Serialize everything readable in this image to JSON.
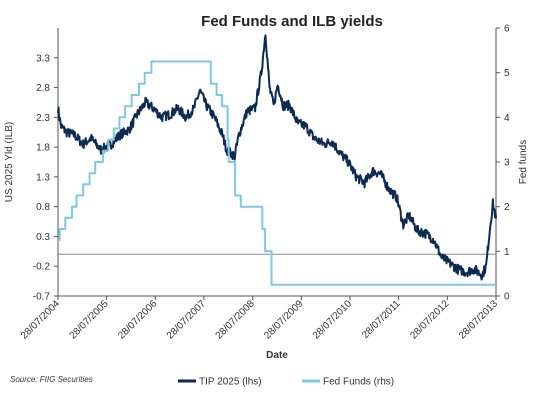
{
  "chart_data": {
    "type": "line",
    "title": "Fed Funds and ILB yields",
    "xlabel": "Date",
    "ylabel_left": "US 2025 Yld (ILB)",
    "ylabel_right": "Fed funds",
    "source": "Source: FIIG Securities",
    "x_range": [
      "28/07/2004",
      "28/07/2013"
    ],
    "x_ticks": [
      "28/07/2004",
      "28/07/2005",
      "28/07/2006",
      "28/07/2007",
      "28/07/2008",
      "28/07/2009",
      "28/07/2010",
      "28/07/2011",
      "28/07/2012",
      "28/07/2013"
    ],
    "y_left": {
      "min": -0.7,
      "max": 3.8,
      "ticks": [
        3.3,
        2.8,
        2.3,
        1.8,
        1.3,
        0.8,
        0.3,
        -0.2,
        -0.7
      ],
      "tick_labels": [
        "3.3",
        "2.8",
        "2.3",
        "1.8",
        "1.3",
        "0.8",
        "0.3",
        "-0.2",
        "-0.7"
      ]
    },
    "y_right": {
      "min": 0,
      "max": 6,
      "ticks": [
        0,
        1,
        2,
        3,
        4,
        5,
        6
      ],
      "tick_labels": [
        "0",
        "1",
        "2",
        "3",
        "4",
        "5",
        "6"
      ]
    },
    "reference_line_left_value": 0,
    "grid": false,
    "legend_position": "bottom",
    "series": [
      {
        "name": "TIP 2025 (lhs)",
        "axis": "left",
        "color": "#0d2a52",
        "points": [
          [
            "2004-07-28",
            2.45
          ],
          [
            "2004-08-20",
            2.15
          ],
          [
            "2004-10-01",
            2.05
          ],
          [
            "2004-12-01",
            2.0
          ],
          [
            "2005-02-01",
            1.85
          ],
          [
            "2005-04-01",
            1.95
          ],
          [
            "2005-06-15",
            1.75
          ],
          [
            "2005-09-01",
            1.85
          ],
          [
            "2005-11-01",
            2.0
          ],
          [
            "2006-01-15",
            2.1
          ],
          [
            "2006-03-15",
            2.35
          ],
          [
            "2006-05-15",
            2.55
          ],
          [
            "2006-07-15",
            2.45
          ],
          [
            "2006-09-15",
            2.3
          ],
          [
            "2006-11-15",
            2.35
          ],
          [
            "2007-01-15",
            2.45
          ],
          [
            "2007-03-15",
            2.3
          ],
          [
            "2007-05-15",
            2.45
          ],
          [
            "2007-06-28",
            2.75
          ],
          [
            "2007-08-15",
            2.5
          ],
          [
            "2007-10-15",
            2.3
          ],
          [
            "2007-12-15",
            2.0
          ],
          [
            "2008-01-15",
            1.75
          ],
          [
            "2008-03-15",
            1.65
          ],
          [
            "2008-04-15",
            2.0
          ],
          [
            "2008-06-15",
            2.4
          ],
          [
            "2008-08-15",
            2.45
          ],
          [
            "2008-10-01",
            3.05
          ],
          [
            "2008-11-01",
            3.72
          ],
          [
            "2008-12-01",
            2.8
          ],
          [
            "2009-01-01",
            2.5
          ],
          [
            "2009-02-01",
            2.85
          ],
          [
            "2009-03-15",
            2.5
          ],
          [
            "2009-05-01",
            2.5
          ],
          [
            "2009-07-01",
            2.2
          ],
          [
            "2009-09-01",
            2.15
          ],
          [
            "2009-11-01",
            1.95
          ],
          [
            "2010-01-15",
            1.85
          ],
          [
            "2010-03-15",
            1.9
          ],
          [
            "2010-05-15",
            1.7
          ],
          [
            "2010-07-15",
            1.55
          ],
          [
            "2010-09-15",
            1.3
          ],
          [
            "2010-11-15",
            1.2
          ],
          [
            "2011-01-15",
            1.4
          ],
          [
            "2011-03-15",
            1.35
          ],
          [
            "2011-05-15",
            1.1
          ],
          [
            "2011-07-15",
            0.95
          ],
          [
            "2011-09-01",
            0.5
          ],
          [
            "2011-10-15",
            0.65
          ],
          [
            "2011-12-15",
            0.4
          ],
          [
            "2012-02-15",
            0.35
          ],
          [
            "2012-04-15",
            0.25
          ],
          [
            "2012-06-15",
            -0.05
          ],
          [
            "2012-08-15",
            -0.15
          ],
          [
            "2012-10-15",
            -0.25
          ],
          [
            "2012-12-15",
            -0.3
          ],
          [
            "2013-02-15",
            -0.25
          ],
          [
            "2013-04-15",
            -0.35
          ],
          [
            "2013-05-15",
            -0.2
          ],
          [
            "2013-06-15",
            0.5
          ],
          [
            "2013-07-05",
            0.85
          ],
          [
            "2013-07-28",
            0.6
          ]
        ]
      },
      {
        "name": "Fed Funds (rhs)",
        "axis": "right",
        "color": "#7ec8e3",
        "points": [
          [
            "2004-07-28",
            1.25
          ],
          [
            "2004-08-10",
            1.5
          ],
          [
            "2004-09-21",
            1.75
          ],
          [
            "2004-11-10",
            2.0
          ],
          [
            "2004-12-14",
            2.25
          ],
          [
            "2005-02-02",
            2.5
          ],
          [
            "2005-03-22",
            2.75
          ],
          [
            "2005-05-03",
            3.0
          ],
          [
            "2005-06-30",
            3.25
          ],
          [
            "2005-08-09",
            3.5
          ],
          [
            "2005-09-20",
            3.75
          ],
          [
            "2005-11-01",
            4.0
          ],
          [
            "2005-12-13",
            4.25
          ],
          [
            "2006-01-31",
            4.5
          ],
          [
            "2006-03-28",
            4.75
          ],
          [
            "2006-05-10",
            5.0
          ],
          [
            "2006-06-29",
            5.25
          ],
          [
            "2007-09-18",
            4.75
          ],
          [
            "2007-10-31",
            4.5
          ],
          [
            "2007-12-11",
            4.25
          ],
          [
            "2008-01-22",
            3.5
          ],
          [
            "2008-01-30",
            3.0
          ],
          [
            "2008-03-18",
            2.25
          ],
          [
            "2008-04-30",
            2.0
          ],
          [
            "2008-10-08",
            1.5
          ],
          [
            "2008-10-29",
            1.0
          ],
          [
            "2008-12-16",
            0.25
          ],
          [
            "2013-07-28",
            0.25
          ]
        ]
      }
    ]
  }
}
